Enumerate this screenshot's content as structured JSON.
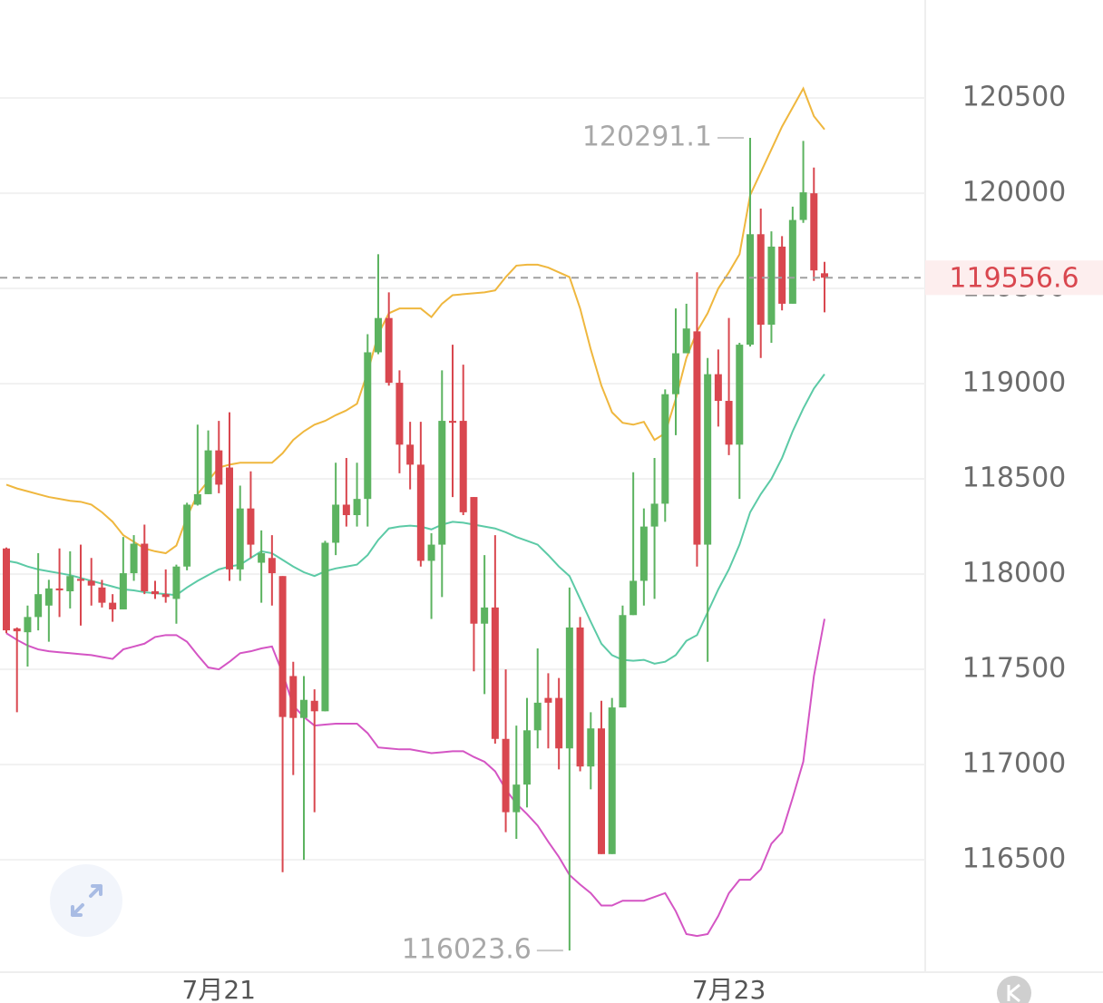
{
  "chart_data": {
    "type": "candlestick",
    "categories": [
      null,
      null,
      null,
      null,
      null,
      null,
      null,
      null,
      null,
      null,
      null,
      null,
      null,
      null,
      null,
      null,
      null,
      null,
      null,
      null,
      "7月21",
      null,
      null,
      null,
      null,
      null,
      null,
      null,
      null,
      null,
      null,
      null,
      null,
      null,
      null,
      null,
      null,
      null,
      null,
      null,
      null,
      null,
      null,
      null,
      null,
      null,
      null,
      null,
      null,
      null,
      null,
      null,
      null,
      null,
      null,
      null,
      null,
      null,
      null,
      null,
      null,
      null,
      null,
      null,
      null,
      null,
      null,
      null,
      "7月23",
      null,
      null,
      null,
      null,
      null,
      null,
      null,
      null,
      null
    ],
    "open": [
      118135,
      117715,
      117695,
      117775,
      117835,
      117925,
      117910,
      117975,
      117965,
      117930,
      117850,
      117815,
      118005,
      118160,
      117910,
      117895,
      117870,
      118040,
      118365,
      118420,
      118650,
      118560,
      118025,
      118345,
      118060,
      118085,
      117990,
      117465,
      117245,
      117335,
      117280,
      118165,
      118365,
      118310,
      118395,
      119165,
      119345,
      119005,
      118680,
      118575,
      118070,
      118155,
      118805,
      118805,
      118405,
      117740,
      117825,
      117135,
      116750,
      116895,
      117180,
      117350,
      117350,
      117085,
      117720,
      116990,
      117190,
      116530,
      117300,
      117785,
      117965,
      118250,
      118370,
      118945,
      119160,
      119275,
      118155,
      119050,
      118910,
      118680,
      119205,
      119785,
      119310,
      119720,
      119420,
      119860,
      120000,
      119580
    ],
    "high": [
      118140,
      117720,
      117835,
      118110,
      117970,
      118135,
      118120,
      118155,
      118085,
      117970,
      117895,
      118195,
      118205,
      118260,
      117965,
      118025,
      118050,
      118375,
      118785,
      118755,
      118805,
      118850,
      118465,
      118540,
      118230,
      118205,
      117990,
      117540,
      117465,
      117395,
      118175,
      118585,
      118610,
      118585,
      119260,
      119680,
      119480,
      119070,
      118800,
      118800,
      118215,
      119070,
      119205,
      119100,
      118405,
      118100,
      118205,
      117500,
      117205,
      117350,
      117610,
      117480,
      117455,
      117930,
      117775,
      117275,
      117335,
      117350,
      117835,
      118535,
      118345,
      118610,
      118970,
      119395,
      119420,
      119585,
      119135,
      119180,
      119345,
      119215,
      120291.1,
      119920,
      119800,
      119775,
      119930,
      120275,
      120135,
      119640
    ],
    "low": [
      117690,
      117275,
      117515,
      117705,
      117645,
      117775,
      117820,
      117730,
      117835,
      117825,
      117750,
      117815,
      117965,
      117895,
      117870,
      117850,
      117740,
      118020,
      118360,
      118420,
      118425,
      117965,
      117965,
      118085,
      117850,
      117835,
      116435,
      116945,
      116500,
      116750,
      117280,
      118100,
      118250,
      118250,
      118250,
      119155,
      118990,
      118530,
      118445,
      118040,
      117765,
      117880,
      118405,
      118310,
      117490,
      117370,
      117110,
      116645,
      116610,
      116775,
      117085,
      117085,
      116975,
      116023.6,
      116965,
      116870,
      116530,
      116530,
      117300,
      117785,
      117835,
      117870,
      118275,
      118730,
      119160,
      118040,
      117540,
      118775,
      118625,
      118395,
      119195,
      119135,
      119215,
      119385,
      119420,
      119845,
      119540,
      119375
    ],
    "close": [
      117705,
      117700,
      117775,
      117895,
      117925,
      117915,
      117990,
      117965,
      117940,
      117850,
      117815,
      118005,
      118160,
      117910,
      117895,
      117880,
      118040,
      118365,
      118420,
      118650,
      118470,
      118025,
      118345,
      118155,
      118110,
      118005,
      117250,
      117245,
      117340,
      117280,
      118165,
      118365,
      118310,
      118395,
      119165,
      119345,
      119005,
      118680,
      118575,
      118070,
      118155,
      118805,
      118795,
      118325,
      117740,
      117825,
      117135,
      116750,
      116895,
      117180,
      117325,
      117325,
      117085,
      117720,
      116990,
      117190,
      116530,
      117300,
      117785,
      117965,
      118250,
      118370,
      118945,
      119160,
      119290,
      118155,
      119050,
      118910,
      118680,
      119205,
      119785,
      119310,
      119720,
      119420,
      119860,
      120005,
      119595,
      119556.6
    ],
    "up_color": "#5cb360",
    "down_color": "#d9474f",
    "bands": [
      {
        "color": "#efb73e",
        "values": [
          118470,
          118450,
          118435,
          118420,
          118405,
          118395,
          118385,
          118380,
          118365,
          118325,
          118275,
          118205,
          118170,
          118135,
          118120,
          118110,
          118150,
          118300,
          118420,
          118490,
          118560,
          118575,
          118585,
          118585,
          118585,
          118585,
          118635,
          118705,
          118750,
          118785,
          118805,
          118835,
          118860,
          118895,
          119060,
          119260,
          119370,
          119395,
          119395,
          119395,
          119350,
          119420,
          119465,
          119470,
          119475,
          119480,
          119490,
          119560,
          119620,
          119625,
          119625,
          119610,
          119585,
          119560,
          119395,
          119180,
          118990,
          118850,
          118795,
          118785,
          118800,
          118705,
          118740,
          118920,
          119135,
          119275,
          119370,
          119500,
          119585,
          119680,
          119990,
          120110,
          120230,
          120350,
          120450,
          120550,
          120405,
          120335
        ]
      },
      {
        "color": "#5ccaa6",
        "values": [
          118070,
          118060,
          118040,
          118025,
          118015,
          118005,
          117995,
          117980,
          117965,
          117950,
          117935,
          117920,
          117915,
          117905,
          117900,
          117895,
          117890,
          117930,
          117965,
          117995,
          118025,
          118040,
          118050,
          118085,
          118120,
          118110,
          118075,
          118040,
          118010,
          117990,
          118015,
          118030,
          118040,
          118050,
          118100,
          118180,
          118240,
          118250,
          118255,
          118250,
          118235,
          118260,
          118275,
          118270,
          118260,
          118250,
          118240,
          118220,
          118195,
          118175,
          118155,
          118100,
          118040,
          117990,
          117870,
          117750,
          117635,
          117575,
          117550,
          117545,
          117550,
          117530,
          117540,
          117575,
          117650,
          117680,
          117800,
          117920,
          118025,
          118155,
          118325,
          118420,
          118500,
          118610,
          118750,
          118870,
          118975,
          119050
        ]
      },
      {
        "color": "#d455c4",
        "values": [
          117690,
          117655,
          117625,
          117605,
          117595,
          117590,
          117585,
          117580,
          117575,
          117565,
          117555,
          117605,
          117620,
          117635,
          117670,
          117680,
          117680,
          117645,
          117575,
          117510,
          117500,
          117540,
          117585,
          117595,
          117610,
          117620,
          117480,
          117310,
          117250,
          117205,
          117210,
          117215,
          117215,
          117215,
          117165,
          117090,
          117085,
          117080,
          117080,
          117070,
          117060,
          117065,
          117070,
          117070,
          117040,
          117015,
          116965,
          116870,
          116795,
          116740,
          116680,
          116595,
          116515,
          116420,
          116370,
          116325,
          116260,
          116260,
          116285,
          116285,
          116285,
          116305,
          116325,
          116230,
          116110,
          116100,
          116110,
          116205,
          116325,
          116395,
          116395,
          116450,
          116585,
          116645,
          116825,
          117015,
          117465,
          117765
        ]
      }
    ],
    "ylim": [
      115910,
      121015
    ],
    "yticks": [
      116500,
      117000,
      117500,
      118000,
      118500,
      119000,
      119500,
      120000,
      120500
    ],
    "grid": true
  }
}
